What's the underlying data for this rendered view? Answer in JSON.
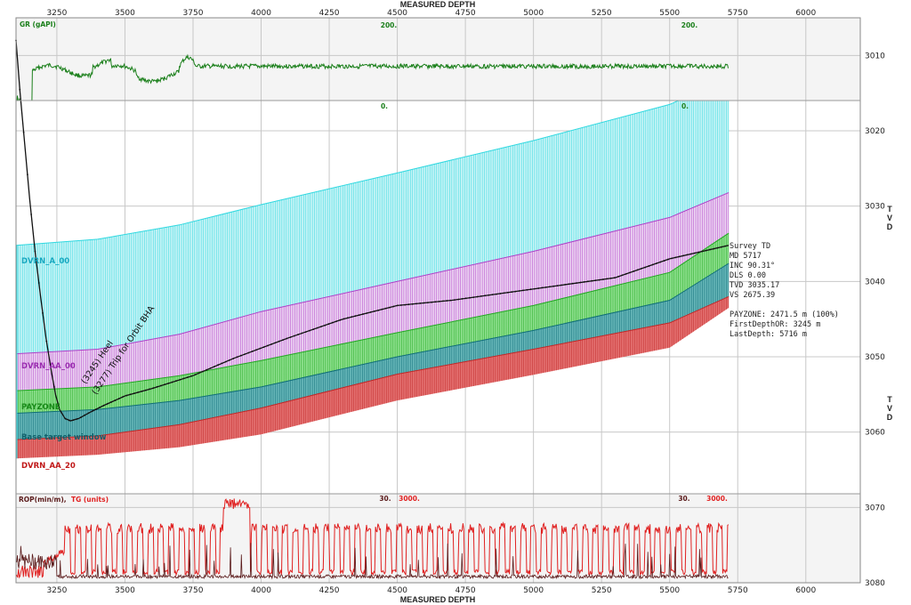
{
  "chart_data": {
    "type": "line",
    "title": "",
    "xlabel": "MEASURED DEPTH",
    "ylabel": "TVD",
    "xlim": [
      3100,
      6200
    ],
    "x_ticks": [
      3250,
      3500,
      3750,
      4000,
      4250,
      4500,
      4750,
      5000,
      5250,
      5500,
      5750,
      6000
    ],
    "ylim": [
      3005,
      3080
    ],
    "y_ticks": [
      3010,
      3020,
      3030,
      3040,
      3050,
      3060,
      3070,
      3080
    ],
    "grid": true,
    "tracks": {
      "gr": {
        "label": "GR (gAPI)",
        "scale_max_labels": [
          "200.",
          "200."
        ],
        "scale_min_labels": [
          "0.",
          "0."
        ],
        "color": "#1a7f1a"
      },
      "bottom": {
        "rop_label": "ROP(min/m),",
        "tg_label": "TG (units)",
        "rop_scale_labels": [
          "30.",
          "30."
        ],
        "tg_scale_labels": [
          "3000.",
          "3000."
        ],
        "rop_color": "#5a1a1a",
        "tg_color": "#e02020"
      }
    },
    "zone_boundaries_md": [
      3100,
      3400,
      3700,
      4000,
      4500,
      5000,
      5500,
      5717
    ],
    "surfaces": {
      "dvrn_a_00": [
        3035.2,
        3034.4,
        3032.5,
        3029.8,
        3025.6,
        3021.3,
        3016.5,
        3013.0
      ],
      "dvrn_aa_00": [
        3049.6,
        3049.0,
        3047.0,
        3044.0,
        3040.0,
        3036.0,
        3031.5,
        3028.2
      ],
      "payzone_top": [
        3054.5,
        3054.0,
        3052.5,
        3050.5,
        3046.8,
        3043.2,
        3038.8,
        3033.6
      ],
      "payzone_base": [
        3057.5,
        3057.0,
        3055.8,
        3054.0,
        3050.0,
        3046.5,
        3042.5,
        3037.6
      ],
      "base_target_window": [
        3061.0,
        3060.5,
        3059.0,
        3056.8,
        3052.3,
        3049.0,
        3045.5,
        3042.0
      ],
      "dvrn_aa_20": [
        3063.5,
        3063.0,
        3062.0,
        3060.3,
        3055.8,
        3052.4,
        3048.8,
        3043.5
      ]
    },
    "zones": [
      {
        "name": "DVRN_A_00",
        "top": "dvrn_a_00",
        "base": "dvrn_aa_00",
        "color": "#30d8e0",
        "fill": "#c8f4f6"
      },
      {
        "name": "DVRN_AA_00",
        "top": "dvrn_aa_00",
        "base": "payzone_top",
        "color": "#b040c8",
        "fill": "#ecd4f2"
      },
      {
        "name": "PAYZONE",
        "top": "payzone_top",
        "base": "payzone_base",
        "color": "#22a822",
        "fill": "#8ee08e"
      },
      {
        "name": "Base target window",
        "top": "payzone_base",
        "base": "base_target_window",
        "color": "#0f6e78",
        "fill": "#66b6b8"
      },
      {
        "name": "DVRN_AA_20",
        "top": "base_target_window",
        "base": "dvrn_aa_20",
        "color": "#c02828",
        "fill": "#e47070"
      }
    ],
    "zone_labels": [
      {
        "text": "DVRN_A_00",
        "color": "#18a8c0"
      },
      {
        "text": "DVRN_AA_00",
        "color": "#9a2cb0"
      },
      {
        "text": "PAYZONE",
        "color": "#1a8a1a"
      },
      {
        "text": "Base target window",
        "color": "#0f5f6a"
      },
      {
        "text": "DVRN_AA_20",
        "color": "#c01818"
      }
    ],
    "wellbore": {
      "color": "#111111",
      "md": [
        3100,
        3115,
        3130,
        3150,
        3170,
        3190,
        3210,
        3230,
        3245,
        3260,
        3280,
        3300,
        3330,
        3370,
        3420,
        3500,
        3600,
        3750,
        3900,
        4100,
        4300,
        4500,
        4700,
        4900,
        5100,
        5300,
        5500,
        5717
      ],
      "tvd": [
        3008.0,
        3015.0,
        3021.0,
        3029.0,
        3036.0,
        3042.0,
        3047.5,
        3052.0,
        3055.0,
        3057.0,
        3058.2,
        3058.5,
        3058.2,
        3057.4,
        3056.5,
        3055.2,
        3054.2,
        3052.5,
        3050.2,
        3047.5,
        3045.0,
        3043.2,
        3042.5,
        3041.5,
        3040.5,
        3039.5,
        3037.0,
        3035.2
      ]
    },
    "annotations": [
      {
        "text": "(3245) Heel",
        "md": 3245
      },
      {
        "text": "(3277) Trip for Orbit BHA",
        "md": 3277
      }
    ],
    "survey_info": [
      "Survey TD",
      "MD 5717",
      "INC 90.31°",
      "DLS 0.00",
      "TVD 3035.17",
      "VS 2675.39",
      "",
      "PAYZONE: 2471.5 m (100%)",
      "FirstDepthOR: 3245 m",
      "LastDepth: 5716 m"
    ]
  }
}
